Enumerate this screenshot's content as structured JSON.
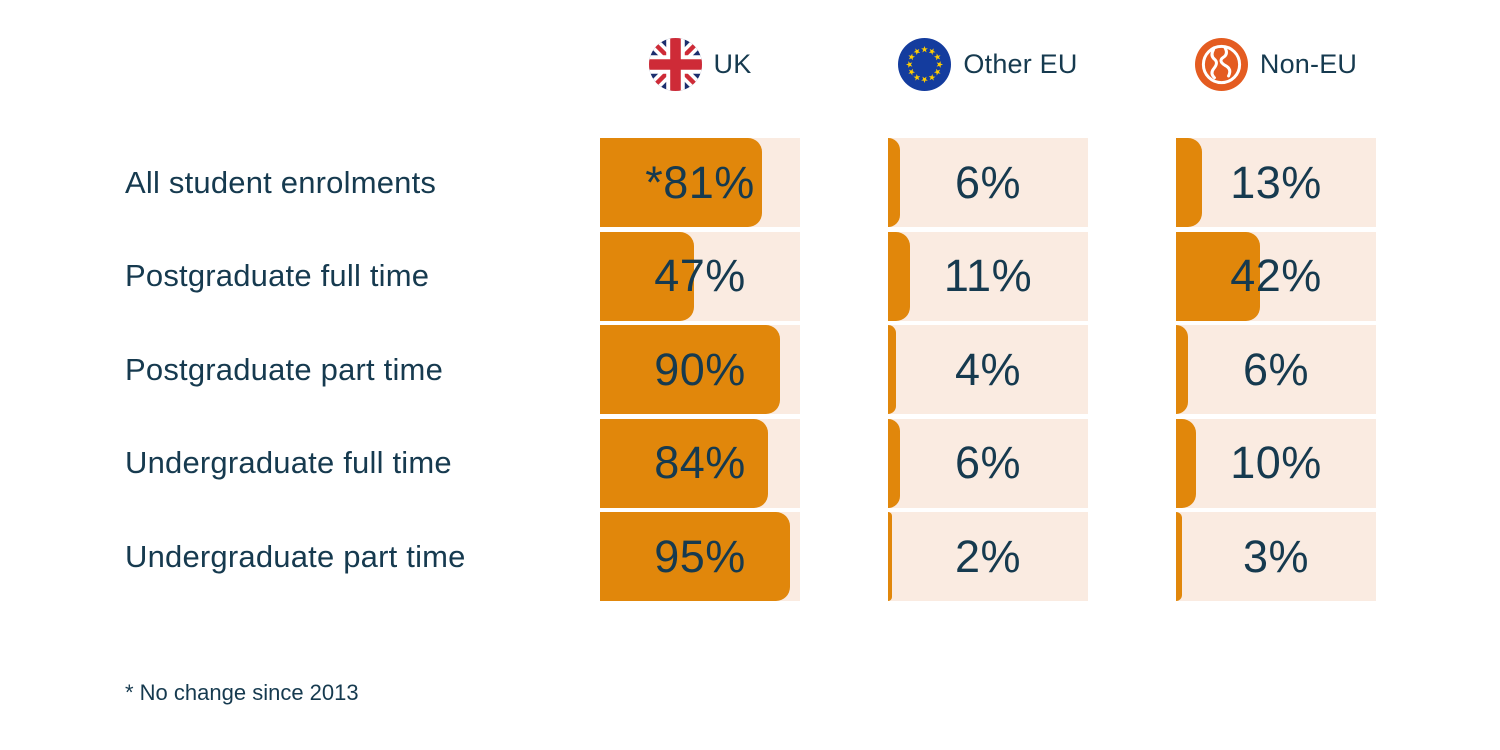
{
  "legend": {
    "items": [
      {
        "id": "uk",
        "label": "UK",
        "icon": "uk-flag-icon"
      },
      {
        "id": "other_eu",
        "label": "Other EU",
        "icon": "eu-flag-icon"
      },
      {
        "id": "non_eu",
        "label": "Non-EU",
        "icon": "globe-icon"
      }
    ]
  },
  "rows": [
    {
      "label": "All student enrolments",
      "uk": "*81%",
      "other_eu": "6%",
      "non_eu": "13%"
    },
    {
      "label": "Postgraduate full time",
      "uk": "47%",
      "other_eu": "11%",
      "non_eu": "42%"
    },
    {
      "label": "Postgraduate part time",
      "uk": "90%",
      "other_eu": "4%",
      "non_eu": "6%"
    },
    {
      "label": "Undergraduate full time",
      "uk": "84%",
      "other_eu": "6%",
      "non_eu": "10%"
    },
    {
      "label": "Undergraduate part time",
      "uk": "95%",
      "other_eu": "2%",
      "non_eu": "3%"
    }
  ],
  "footnote": {
    "text": "* No change since 2013"
  },
  "colors": {
    "background": "#FFFFFF",
    "bar_orange": "#E1870B",
    "track_peach": "#FAEBE1",
    "text_navy": "#163A4F",
    "noneu_icon_orange": "#E45C21",
    "eu_blue": "#143C9E",
    "eu_star_yellow": "#FFCC00",
    "uk_flag_blue": "#1B2E6E",
    "uk_flag_red": "#CE2B37"
  },
  "chart_data": {
    "type": "bar",
    "orientation": "horizontal",
    "categories": [
      "All student enrolments",
      "Postgraduate full time",
      "Postgraduate part time",
      "Undergraduate full time",
      "Undergraduate part time"
    ],
    "series": [
      {
        "name": "UK",
        "values": [
          81,
          47,
          90,
          84,
          95
        ]
      },
      {
        "name": "Other EU",
        "values": [
          6,
          11,
          4,
          6,
          2
        ]
      },
      {
        "name": "Non-EU",
        "values": [
          13,
          42,
          6,
          10,
          3
        ]
      }
    ],
    "value_suffix": "%",
    "xlim": [
      0,
      100
    ],
    "grid": false,
    "legend_position": "top",
    "value_labels": "centered-in-track",
    "annotations": [
      "* No change since 2013",
      "UK value for All student enrolments is marked with * (no change since 2013)"
    ]
  }
}
